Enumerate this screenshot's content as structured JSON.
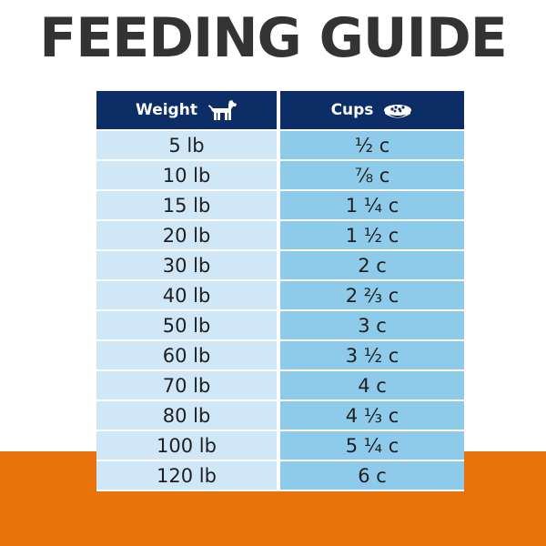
{
  "title": "FEEDING GUIDE",
  "table": {
    "headers": {
      "weight": "Weight",
      "weight_icon": "dog-icon",
      "cups": "Cups",
      "cups_icon": "food-bowl-icon"
    },
    "rows": [
      {
        "weight": "5 lb",
        "cups": "½ c"
      },
      {
        "weight": "10 lb",
        "cups": "⅞ c"
      },
      {
        "weight": "15 lb",
        "cups": "1 ¼ c"
      },
      {
        "weight": "20 lb",
        "cups": "1 ½ c"
      },
      {
        "weight": "30 lb",
        "cups": "2 c"
      },
      {
        "weight": "40 lb",
        "cups": "2 ⅔ c"
      },
      {
        "weight": "50 lb",
        "cups": "3 c"
      },
      {
        "weight": "60 lb",
        "cups": "3 ½ c"
      },
      {
        "weight": "70 lb",
        "cups": "4 c"
      },
      {
        "weight": "80 lb",
        "cups": "4 ⅓ c"
      },
      {
        "weight": "100 lb",
        "cups": "5 ¼ c"
      },
      {
        "weight": "120 lb",
        "cups": "6 c"
      }
    ]
  },
  "colors": {
    "header_bg": "#0d2d66",
    "weight_col_bg": "#cfe7f7",
    "cups_col_bg": "#8ecbea",
    "band": "#e8720c",
    "title": "#333333"
  }
}
